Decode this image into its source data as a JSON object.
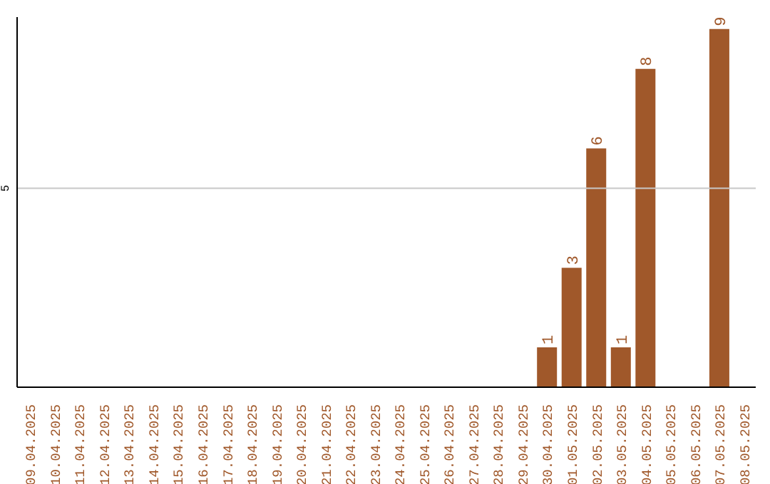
{
  "chart_data": {
    "type": "bar",
    "categories": [
      "09.04.2025",
      "10.04.2025",
      "11.04.2025",
      "12.04.2025",
      "13.04.2025",
      "14.04.2025",
      "15.04.2025",
      "16.04.2025",
      "17.04.2025",
      "18.04.2025",
      "19.04.2025",
      "20.04.2025",
      "21.04.2025",
      "22.04.2025",
      "23.04.2025",
      "24.04.2025",
      "25.04.2025",
      "26.04.2025",
      "27.04.2025",
      "28.04.2025",
      "29.04.2025",
      "30.04.2025",
      "01.05.2025",
      "02.05.2025",
      "03.05.2025",
      "04.05.2025",
      "05.05.2025",
      "06.05.2025",
      "07.05.2025",
      "08.05.2025"
    ],
    "values": [
      null,
      null,
      null,
      null,
      null,
      null,
      null,
      null,
      null,
      null,
      null,
      null,
      null,
      null,
      null,
      null,
      null,
      null,
      null,
      null,
      null,
      1,
      3,
      6,
      1,
      8,
      null,
      null,
      9,
      null
    ],
    "color": "#a0582a",
    "ylim": [
      0,
      9.3
    ],
    "yticks": [
      5
    ],
    "grid": "y",
    "data_labels": true
  }
}
